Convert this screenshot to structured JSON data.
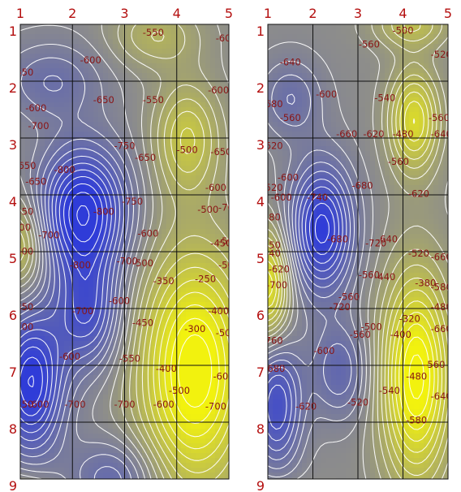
{
  "chart_data": [
    {
      "type": "heatmap",
      "title": "",
      "xlabel": "",
      "ylabel": "",
      "x_ticks": [
        "1",
        "2",
        "3",
        "4",
        "5"
      ],
      "y_ticks": [
        "1",
        "2",
        "3",
        "4",
        "5",
        "6",
        "7",
        "8",
        "9"
      ],
      "xlim": [
        1,
        5
      ],
      "ylim": [
        1,
        9
      ],
      "y_direction": "down",
      "grid": true,
      "colors": {
        "low": "#2f3cd8",
        "mid": "#8c8c8c",
        "high": "#f2f20e"
      },
      "contour_labels": [
        {
          "x": 3.55,
          "y": 1.2,
          "value": "-550"
        },
        {
          "x": 4.95,
          "y": 1.35,
          "value": "-600"
        },
        {
          "x": 2.35,
          "y": 1.9,
          "value": "-600"
        },
        {
          "x": 1.05,
          "y": 2.2,
          "value": "-650"
        },
        {
          "x": 4.8,
          "y": 2.65,
          "value": "-600"
        },
        {
          "x": 2.6,
          "y": 2.9,
          "value": "-650"
        },
        {
          "x": 3.55,
          "y": 2.9,
          "value": "-550"
        },
        {
          "x": 1.3,
          "y": 3.1,
          "value": "-600"
        },
        {
          "x": 1.35,
          "y": 3.55,
          "value": "-700"
        },
        {
          "x": 3.0,
          "y": 4.05,
          "value": "-750"
        },
        {
          "x": 4.2,
          "y": 4.15,
          "value": "-500"
        },
        {
          "x": 4.85,
          "y": 4.2,
          "value": "-650"
        },
        {
          "x": 3.4,
          "y": 4.35,
          "value": "-650"
        },
        {
          "x": 1.1,
          "y": 4.55,
          "value": "-650"
        },
        {
          "x": 1.85,
          "y": 4.65,
          "value": "-800"
        },
        {
          "x": 1.3,
          "y": 4.95,
          "value": "-650"
        },
        {
          "x": 4.75,
          "y": 5.1,
          "value": "-600"
        },
        {
          "x": 3.15,
          "y": 5.45,
          "value": "-750"
        },
        {
          "x": 1.05,
          "y": 5.7,
          "value": "-450"
        },
        {
          "x": 2.6,
          "y": 5.7,
          "value": "-800"
        },
        {
          "x": 4.6,
          "y": 5.65,
          "value": "-500"
        },
        {
          "x": 5.0,
          "y": 5.6,
          "value": "-700"
        },
        {
          "x": 1.0,
          "y": 6.1,
          "value": "-600"
        },
        {
          "x": 3.45,
          "y": 6.25,
          "value": "-600"
        },
        {
          "x": 1.55,
          "y": 6.3,
          "value": "-700"
        },
        {
          "x": 4.85,
          "y": 6.5,
          "value": "-450"
        },
        {
          "x": 5.0,
          "y": 6.45,
          "value": "-500"
        },
        {
          "x": 1.05,
          "y": 6.7,
          "value": "-800"
        },
        {
          "x": 3.05,
          "y": 6.95,
          "value": "-700"
        },
        {
          "x": 3.35,
          "y": 7.0,
          "value": "-500"
        },
        {
          "x": 2.15,
          "y": 7.05,
          "value": "-800"
        },
        {
          "x": 5.0,
          "y": 7.05,
          "value": "-500"
        },
        {
          "x": 3.75,
          "y": 7.45,
          "value": "-350"
        },
        {
          "x": 4.55,
          "y": 7.4,
          "value": "-250"
        },
        {
          "x": 2.9,
          "y": 7.95,
          "value": "-600"
        },
        {
          "x": 1.05,
          "y": 8.1,
          "value": "-850"
        },
        {
          "x": 2.2,
          "y": 8.2,
          "value": "-700"
        },
        {
          "x": 4.8,
          "y": 8.2,
          "value": "-400"
        },
        {
          "x": 3.35,
          "y": 8.5,
          "value": "-450"
        },
        {
          "x": 1.05,
          "y": 8.6,
          "value": "-700"
        },
        {
          "x": 4.35,
          "y": 8.65,
          "value": "-300"
        },
        {
          "x": 4.95,
          "y": 8.75,
          "value": "-500"
        },
        {
          "x": 1.95,
          "y": 9.35,
          "value": "-600"
        },
        {
          "x": 3.1,
          "y": 9.4,
          "value": "-550"
        },
        {
          "x": 3.8,
          "y": 9.65,
          "value": "-400"
        },
        {
          "x": 4.9,
          "y": 9.85,
          "value": "-600"
        },
        {
          "x": 4.05,
          "y": 10.2,
          "value": "-500"
        },
        {
          "x": 1.05,
          "y": 10.55,
          "value": "-450"
        },
        {
          "x": 1.35,
          "y": 10.55,
          "value": "-600"
        },
        {
          "x": 2.05,
          "y": 10.55,
          "value": "-700"
        },
        {
          "x": 3.0,
          "y": 10.55,
          "value": "-700"
        },
        {
          "x": 3.75,
          "y": 10.55,
          "value": "-600"
        },
        {
          "x": 4.75,
          "y": 10.6,
          "value": "-700"
        }
      ]
    },
    {
      "type": "heatmap",
      "title": "",
      "xlabel": "",
      "ylabel": "",
      "x_ticks": [
        "1",
        "2",
        "3",
        "4",
        "5"
      ],
      "y_ticks": [
        "1",
        "2",
        "3",
        "4",
        "5",
        "6",
        "7",
        "8",
        "9"
      ],
      "xlim": [
        1,
        5
      ],
      "ylim": [
        1,
        9
      ],
      "y_direction": "down",
      "grid": true,
      "colors": {
        "low": "#2f3cd8",
        "mid": "#8c8c8c",
        "high": "#f2f20e"
      },
      "contour_labels": [
        {
          "x": 4.0,
          "y": 1.15,
          "value": "-500"
        },
        {
          "x": 3.25,
          "y": 1.5,
          "value": "-560"
        },
        {
          "x": 4.85,
          "y": 1.75,
          "value": "-520"
        },
        {
          "x": 1.5,
          "y": 1.95,
          "value": "-640"
        },
        {
          "x": 2.3,
          "y": 2.75,
          "value": "-600"
        },
        {
          "x": 3.6,
          "y": 2.85,
          "value": "-540"
        },
        {
          "x": 1.1,
          "y": 3.0,
          "value": "-680"
        },
        {
          "x": 1.5,
          "y": 3.35,
          "value": "-560"
        },
        {
          "x": 4.8,
          "y": 3.35,
          "value": "-560"
        },
        {
          "x": 2.75,
          "y": 3.75,
          "value": "-660"
        },
        {
          "x": 3.35,
          "y": 3.75,
          "value": "-620"
        },
        {
          "x": 4.0,
          "y": 3.75,
          "value": "-480"
        },
        {
          "x": 4.85,
          "y": 3.75,
          "value": "-640"
        },
        {
          "x": 1.1,
          "y": 4.05,
          "value": "-620"
        },
        {
          "x": 3.9,
          "y": 4.45,
          "value": "-560"
        },
        {
          "x": 1.45,
          "y": 4.85,
          "value": "-600"
        },
        {
          "x": 3.1,
          "y": 5.05,
          "value": "-680"
        },
        {
          "x": 1.1,
          "y": 5.1,
          "value": "-520"
        },
        {
          "x": 4.35,
          "y": 5.25,
          "value": "-620"
        },
        {
          "x": 1.3,
          "y": 5.35,
          "value": "-600"
        },
        {
          "x": 2.1,
          "y": 5.35,
          "value": "-740"
        },
        {
          "x": 1.05,
          "y": 5.85,
          "value": "-380"
        },
        {
          "x": 2.55,
          "y": 6.4,
          "value": "-680"
        },
        {
          "x": 3.4,
          "y": 6.5,
          "value": "-720"
        },
        {
          "x": 3.65,
          "y": 6.4,
          "value": "-640"
        },
        {
          "x": 1.05,
          "y": 6.55,
          "value": "-450"
        },
        {
          "x": 1.05,
          "y": 6.75,
          "value": "-540"
        },
        {
          "x": 4.35,
          "y": 6.75,
          "value": "-520"
        },
        {
          "x": 4.85,
          "y": 6.85,
          "value": "-660"
        },
        {
          "x": 1.25,
          "y": 7.15,
          "value": "-620"
        },
        {
          "x": 3.25,
          "y": 7.3,
          "value": "-560"
        },
        {
          "x": 3.6,
          "y": 7.35,
          "value": "-440"
        },
        {
          "x": 4.5,
          "y": 7.5,
          "value": "-380"
        },
        {
          "x": 1.2,
          "y": 7.55,
          "value": "-700"
        },
        {
          "x": 4.85,
          "y": 7.6,
          "value": "-580"
        },
        {
          "x": 2.8,
          "y": 7.85,
          "value": "-560"
        },
        {
          "x": 2.6,
          "y": 8.1,
          "value": "-720"
        },
        {
          "x": 4.85,
          "y": 8.1,
          "value": "-480"
        },
        {
          "x": 4.15,
          "y": 8.4,
          "value": "-320"
        },
        {
          "x": 3.3,
          "y": 8.6,
          "value": "-500"
        },
        {
          "x": 4.85,
          "y": 8.65,
          "value": "-660"
        },
        {
          "x": 3.05,
          "y": 8.8,
          "value": "-560"
        },
        {
          "x": 3.95,
          "y": 8.8,
          "value": "-400"
        },
        {
          "x": 1.1,
          "y": 8.95,
          "value": "-760"
        },
        {
          "x": 2.25,
          "y": 9.2,
          "value": "-600"
        },
        {
          "x": 4.7,
          "y": 9.55,
          "value": "-560"
        },
        {
          "x": 1.15,
          "y": 9.65,
          "value": "-680"
        },
        {
          "x": 4.3,
          "y": 9.85,
          "value": "-480"
        },
        {
          "x": 3.7,
          "y": 10.2,
          "value": "-540"
        },
        {
          "x": 4.85,
          "y": 10.35,
          "value": "-640"
        },
        {
          "x": 3.0,
          "y": 10.5,
          "value": "-520"
        },
        {
          "x": 1.85,
          "y": 10.6,
          "value": "-620"
        },
        {
          "x": 4.3,
          "y": 10.95,
          "value": "-580"
        }
      ]
    }
  ]
}
